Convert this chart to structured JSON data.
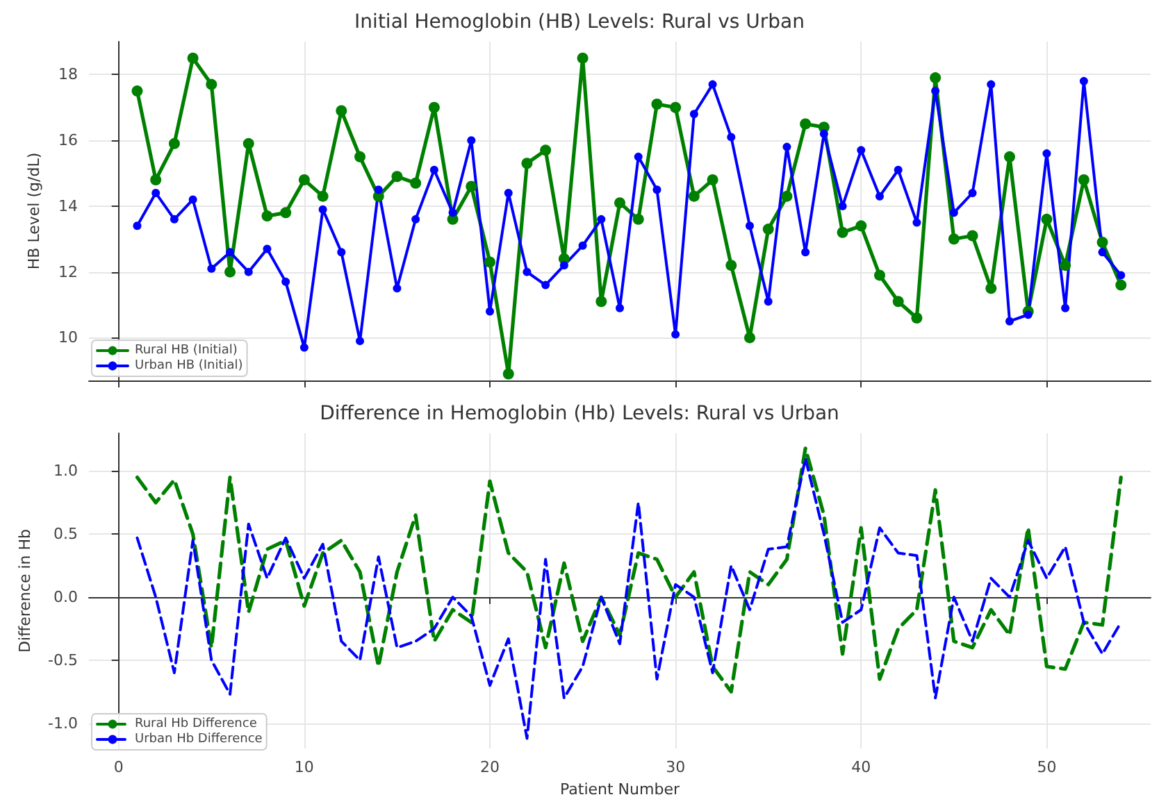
{
  "chart_data": [
    {
      "type": "line",
      "title": "Initial Hemoglobin (HB) Levels: Rural vs Urban",
      "ylabel": "HB Level (g/dL)",
      "x": [
        1,
        2,
        3,
        4,
        5,
        6,
        7,
        8,
        9,
        10,
        11,
        12,
        13,
        14,
        15,
        16,
        17,
        18,
        19,
        20,
        21,
        22,
        23,
        24,
        25,
        26,
        27,
        28,
        29,
        30,
        31,
        32,
        33,
        34,
        35,
        36,
        37,
        38,
        39,
        40,
        41,
        42,
        43,
        44,
        45,
        46,
        47,
        48,
        49,
        50,
        51,
        52,
        53,
        54
      ],
      "xlim": [
        -1.6,
        55.6
      ],
      "xticks": [
        0,
        10,
        20,
        30,
        40,
        50
      ],
      "ylim": [
        8.7,
        19.0
      ],
      "yticks": [
        10,
        12,
        14,
        16,
        18
      ],
      "grid": true,
      "legend": "bottom left",
      "marker": "circle",
      "line_style": "solid",
      "tick_labels": "y",
      "series": [
        {
          "name": "Rural HB (Initial)",
          "color": "#008000",
          "values": [
            17.5,
            14.8,
            15.9,
            18.5,
            17.7,
            12.0,
            15.9,
            13.7,
            13.8,
            14.8,
            14.3,
            16.9,
            15.5,
            14.3,
            14.9,
            14.7,
            17.0,
            13.6,
            14.6,
            12.3,
            8.9,
            15.3,
            15.7,
            12.4,
            18.5,
            11.1,
            14.1,
            13.6,
            17.1,
            17.0,
            14.3,
            14.8,
            12.2,
            10.0,
            13.3,
            14.3,
            16.5,
            16.4,
            13.2,
            13.4,
            11.9,
            11.1,
            10.6,
            17.9,
            13.0,
            13.1,
            11.5,
            15.5,
            10.8,
            13.6,
            12.2,
            14.8,
            12.9,
            11.6
          ]
        },
        {
          "name": "Urban HB (Initial)",
          "color": "#0000ff",
          "values": [
            13.4,
            14.4,
            13.6,
            14.2,
            12.1,
            12.6,
            12.0,
            12.7,
            11.7,
            9.7,
            13.9,
            12.6,
            9.9,
            14.5,
            11.5,
            13.6,
            15.1,
            13.8,
            16.0,
            10.8,
            14.4,
            12.0,
            11.6,
            12.2,
            12.8,
            13.6,
            10.9,
            15.5,
            14.5,
            10.1,
            16.8,
            17.7,
            16.1,
            13.4,
            11.1,
            15.8,
            12.6,
            16.2,
            14.0,
            15.7,
            14.3,
            15.1,
            13.5,
            17.5,
            13.8,
            14.4,
            17.7,
            10.5,
            10.7,
            15.6,
            10.9,
            17.8,
            12.6,
            11.9
          ]
        }
      ]
    },
    {
      "type": "line",
      "title": "Difference in Hemoglobin (Hb) Levels: Rural vs Urban",
      "xlabel": "Patient Number",
      "ylabel": "Difference in Hb",
      "x": [
        1,
        2,
        3,
        4,
        5,
        6,
        7,
        8,
        9,
        10,
        11,
        12,
        13,
        14,
        15,
        16,
        17,
        18,
        19,
        20,
        21,
        22,
        23,
        24,
        25,
        26,
        27,
        28,
        29,
        30,
        31,
        32,
        33,
        34,
        35,
        36,
        37,
        38,
        39,
        40,
        41,
        42,
        43,
        44,
        45,
        46,
        47,
        48,
        49,
        50,
        51,
        52,
        53,
        54
      ],
      "xlim": [
        -1.6,
        55.6
      ],
      "xticks": [
        0,
        10,
        20,
        30,
        40,
        50
      ],
      "ylim": [
        -1.2,
        1.3
      ],
      "yticks": [
        {
          "value": -1,
          "label": "-1.0"
        },
        {
          "value": -0.5,
          "label": "-0.5"
        },
        {
          "value": 0,
          "label": "0.0"
        },
        {
          "value": 0.5,
          "label": "0.5"
        },
        {
          "value": 1,
          "label": "1.0"
        }
      ],
      "grid": true,
      "legend": "bottom left",
      "marker": "none",
      "line_style": "dashed",
      "series": [
        {
          "name": "Rural Hb Difference",
          "color": "#008000",
          "values": [
            0.95,
            0.75,
            0.93,
            0.5,
            -0.4,
            0.95,
            -0.12,
            0.38,
            0.45,
            -0.07,
            0.35,
            0.45,
            0.2,
            -0.55,
            0.2,
            0.65,
            -0.35,
            -0.1,
            -0.2,
            0.92,
            0.35,
            0.2,
            -0.4,
            0.27,
            -0.35,
            0.0,
            -0.3,
            0.35,
            0.3,
            0.0,
            0.2,
            -0.55,
            -0.75,
            0.2,
            0.1,
            0.3,
            1.18,
            0.65,
            -0.45,
            0.55,
            -0.65,
            -0.25,
            -0.1,
            0.85,
            -0.35,
            -0.4,
            -0.1,
            -0.3,
            0.55,
            -0.55,
            -0.57,
            -0.2,
            -0.22,
            0.95
          ]
        },
        {
          "name": "Urban Hb Difference",
          "color": "#0000ff",
          "values": [
            0.47,
            0.0,
            -0.6,
            0.45,
            -0.5,
            -0.77,
            0.58,
            0.15,
            0.47,
            0.15,
            0.42,
            -0.35,
            -0.5,
            0.32,
            -0.4,
            -0.35,
            -0.25,
            0.0,
            -0.15,
            -0.7,
            -0.33,
            -1.12,
            0.3,
            -0.8,
            -0.55,
            0.0,
            -0.37,
            0.75,
            -0.65,
            0.1,
            0.0,
            -0.6,
            0.25,
            -0.1,
            0.38,
            0.4,
            1.1,
            0.5,
            -0.2,
            -0.1,
            0.55,
            0.35,
            0.33,
            -0.8,
            0.0,
            -0.35,
            0.15,
            0.0,
            0.45,
            0.15,
            0.4,
            -0.2,
            -0.45,
            -0.2
          ]
        }
      ]
    }
  ]
}
